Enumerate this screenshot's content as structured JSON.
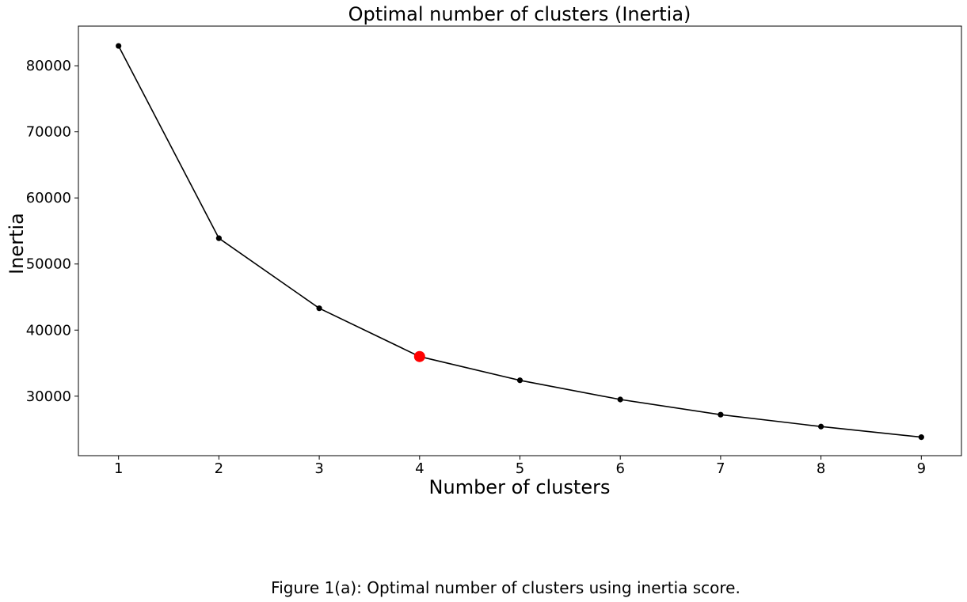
{
  "chart_data": {
    "type": "line",
    "title": "Optimal number of clusters (Inertia)",
    "xlabel": "Number of clusters",
    "ylabel": "Inertia",
    "x": [
      1,
      2,
      3,
      4,
      5,
      6,
      7,
      8,
      9
    ],
    "y": [
      83000,
      53900,
      43300,
      36000,
      32400,
      29500,
      27200,
      25400,
      23800
    ],
    "xlim": [
      0.6,
      9.4
    ],
    "ylim": [
      21000,
      86000
    ],
    "xticks": [
      "1",
      "2",
      "3",
      "4",
      "5",
      "6",
      "7",
      "8",
      "9"
    ],
    "yticks": [
      "30000",
      "40000",
      "50000",
      "60000",
      "70000",
      "80000"
    ],
    "highlight": {
      "x": 4,
      "y": 36000,
      "color": "#ff0000"
    },
    "line_color": "#000000",
    "grid": false
  },
  "caption": "Figure 1(a): Optimal number of clusters using inertia score."
}
